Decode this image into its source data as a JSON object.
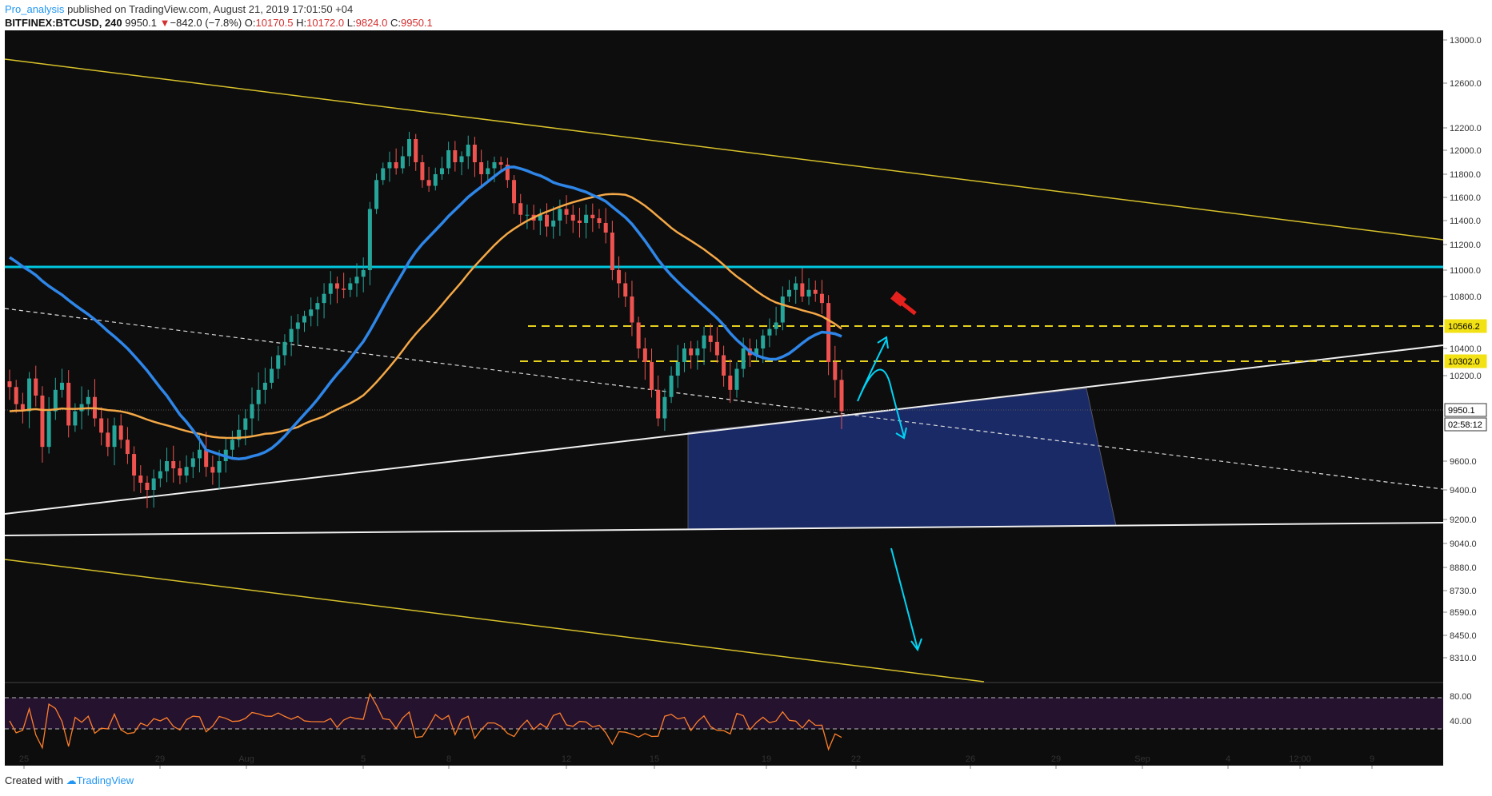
{
  "header": {
    "author": "Pro_analysis",
    "published": "published on TradingView.com, August 21, 2019 17:01:50 +04",
    "symbol": "BITFINEX:BTCUSD, 240",
    "last": "9950.1",
    "change_arrow": "▼",
    "change": "−842.0 (−7.8%)",
    "o_label": "O:",
    "o_value": "10170.5",
    "h_label": "H:",
    "h_value": "10172.0",
    "l_label": "L:",
    "l_value": "9824.0",
    "c_label": "C:",
    "c_value": "9950.1"
  },
  "footer": {
    "created_with": "Created with",
    "brand": "TradingView"
  },
  "colors": {
    "background": "#0d0d0d",
    "up": "#26a69a",
    "down": "#ef5350",
    "ma_fast": "#2e86e8",
    "ma_slow": "#f5a847",
    "resistance": "#00c8e0",
    "dashed_level": "#e6d21e",
    "channel": "#d7c12a",
    "zone": "#1a2a66",
    "arrow": "#00d4f5",
    "rsi": "#ff7f2a"
  },
  "chart_data": {
    "type": "candlestick",
    "symbol": "BITFINEX:BTCUSD",
    "timeframe": "240",
    "y_axis_ticks": [
      "13000.0",
      "12600.0",
      "12200.0",
      "12000.0",
      "11800.0",
      "11600.0",
      "11400.0",
      "11200.0",
      "11000.0",
      "10800.0",
      "10400.0",
      "10200.0",
      "9600.0",
      "9400.0",
      "9200.0",
      "9040.0",
      "8880.0",
      "8730.0",
      "8590.0",
      "8450.0",
      "8310.0"
    ],
    "x_axis_ticks": [
      "25",
      "29",
      "Aug",
      "5",
      "8",
      "12",
      "15",
      "19",
      "22",
      "26",
      "29",
      "Sep",
      "4",
      "12:00",
      "9"
    ],
    "price_labels": [
      {
        "text": "10566.2",
        "value": 10566.2
      },
      {
        "text": "10302.0",
        "value": 10302.0
      },
      {
        "text": "9950.1",
        "value": 9950.1
      }
    ],
    "countdown": "02:58:12",
    "resistance_level": 11030,
    "close_series": [
      10120,
      10000,
      9950,
      10180,
      10060,
      9700,
      9950,
      10100,
      10150,
      9850,
      9950,
      10000,
      10050,
      9900,
      9800,
      9700,
      9850,
      9750,
      9650,
      9500,
      9450,
      9400,
      9480,
      9530,
      9600,
      9550,
      9500,
      9560,
      9620,
      9680,
      9560,
      9520,
      9600,
      9680,
      9750,
      9820,
      9900,
      10000,
      10100,
      10150,
      10250,
      10350,
      10450,
      10550,
      10600,
      10650,
      10700,
      10750,
      10820,
      10900,
      10860,
      10850,
      10900,
      10950,
      11000,
      11500,
      11750,
      11850,
      11900,
      11850,
      11950,
      12100,
      11900,
      11750,
      11700,
      11800,
      11850,
      12000,
      11900,
      11950,
      12050,
      11900,
      11800,
      11850,
      11900,
      11880,
      11750,
      11550,
      11450,
      11450,
      11400,
      11450,
      11350,
      11400,
      11500,
      11450,
      11400,
      11380,
      11450,
      11420,
      11380,
      11300,
      11000,
      10900,
      10800,
      10600,
      10400,
      10300,
      10100,
      9900,
      10050,
      10200,
      10300,
      10400,
      10350,
      10400,
      10500,
      10450,
      10350,
      10200,
      10100,
      10250,
      10400,
      10350,
      10400,
      10500,
      10550,
      10600,
      10800,
      10850,
      10900,
      10800,
      10850,
      10820,
      10750,
      10300,
      10170,
      9950.1
    ],
    "ma_slow": {
      "start": 9950,
      "end": 11060
    },
    "ma_fast": {
      "start": 11100,
      "end": 10570
    },
    "rsi": {
      "levels": [
        "80.00",
        "40.00"
      ],
      "upper": 70,
      "lower": 30
    }
  }
}
